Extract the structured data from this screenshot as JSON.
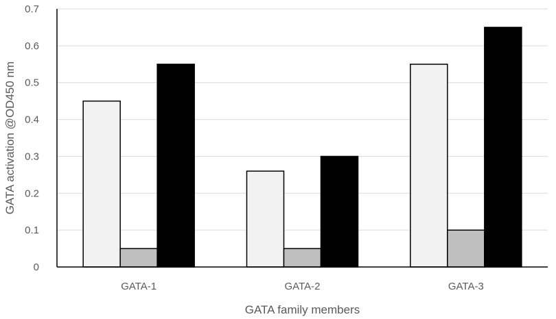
{
  "chart_data": {
    "type": "bar",
    "title": "",
    "xlabel": "GATA family members",
    "ylabel": "GATA activation @OD450 nm",
    "categories": [
      "GATA-1",
      "GATA-2",
      "GATA-3"
    ],
    "series": [
      {
        "values": [
          0.45,
          0.26,
          0.55
        ],
        "color": "#f2f2f2"
      },
      {
        "values": [
          0.05,
          0.05,
          0.1
        ],
        "color": "#bfbfbf"
      },
      {
        "values": [
          0.55,
          0.3,
          0.65
        ],
        "color": "#000000"
      }
    ],
    "ylim": [
      0,
      0.7
    ],
    "yticks": [
      "0",
      "0.1",
      "0.2",
      "0.3",
      "0.4",
      "0.5",
      "0.6",
      "0.7"
    ],
    "grid": true,
    "legend": "none"
  }
}
